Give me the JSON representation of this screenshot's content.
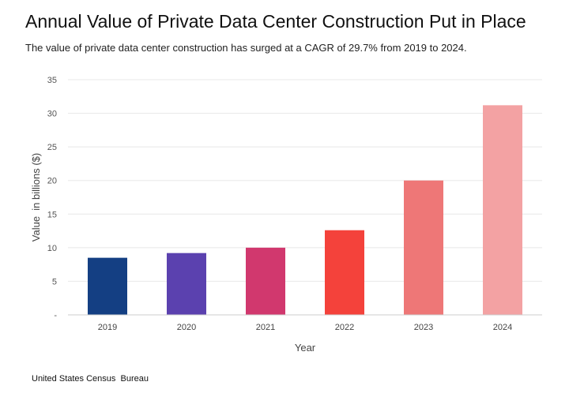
{
  "title": "Annual Value of Private Data Center Construction Put in Place",
  "subtitle": "The value of private data center construction has surged at a CAGR of 29.7% from 2019 to 2024.",
  "source": "United States Census  Bureau",
  "chart_data": {
    "type": "bar",
    "categories": [
      "2019",
      "2020",
      "2021",
      "2022",
      "2023",
      "2024"
    ],
    "values": [
      8.5,
      9.2,
      10.0,
      12.6,
      20.0,
      31.2
    ],
    "colors": [
      "#143f83",
      "#5b41af",
      "#d1386e",
      "#f4423b",
      "#ee7777",
      "#f3a2a3"
    ],
    "xlabel": "Year",
    "ylabel": "Value  in billions ($)",
    "ylim": [
      0,
      35
    ],
    "yticks": [
      {
        "value": 0,
        "label": "-"
      },
      {
        "value": 5,
        "label": "5"
      },
      {
        "value": 10,
        "label": "10"
      },
      {
        "value": 15,
        "label": "15"
      },
      {
        "value": 20,
        "label": "20"
      },
      {
        "value": 25,
        "label": "25"
      },
      {
        "value": 30,
        "label": "30"
      },
      {
        "value": 35,
        "label": "35"
      }
    ],
    "grid": true,
    "legend": "none"
  }
}
